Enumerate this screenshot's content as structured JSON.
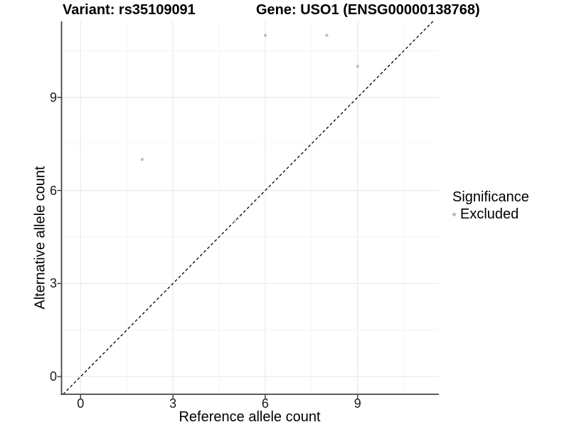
{
  "figure": {
    "title_left": "Variant: rs35109091",
    "title_right": "Gene: USO1 (ENSG00000138768)"
  },
  "chart_data": {
    "type": "scatter",
    "title": "Variant: rs35109091    Gene: USO1 (ENSG00000138768)",
    "xlabel": "Reference allele count",
    "ylabel": "Alternative allele count",
    "xlim": [
      -0.62,
      11.64
    ],
    "ylim": [
      -0.57,
      11.45
    ],
    "x_ticks": [
      0,
      3,
      6,
      9
    ],
    "y_ticks": [
      0,
      3,
      6,
      9
    ],
    "x_minor_ticks": [
      1.5,
      4.5,
      7.5,
      10.5
    ],
    "y_minor_ticks": [
      1.5,
      4.5,
      7.5,
      10.5
    ],
    "grid": true,
    "series": [
      {
        "name": "Excluded",
        "color": "#bcbcbc",
        "points": [
          [
            2,
            7
          ],
          [
            5,
            5
          ],
          [
            6,
            11
          ],
          [
            8,
            11
          ],
          [
            9,
            10
          ]
        ]
      }
    ],
    "reference_line": {
      "type": "identity",
      "slope": 1,
      "intercept": 0,
      "style": "dashed",
      "color": "#000000"
    },
    "legend": {
      "title": "Significance",
      "position": "right",
      "entries": [
        {
          "label": "Excluded",
          "color": "#bcbcbc"
        }
      ]
    },
    "colors": {
      "background": "#ffffff",
      "grid_major": "#e8e8e8",
      "grid_minor": "#f3f3f3",
      "axis_line": "#454545",
      "tick": "#333333",
      "point": "#bcbcbc"
    }
  }
}
